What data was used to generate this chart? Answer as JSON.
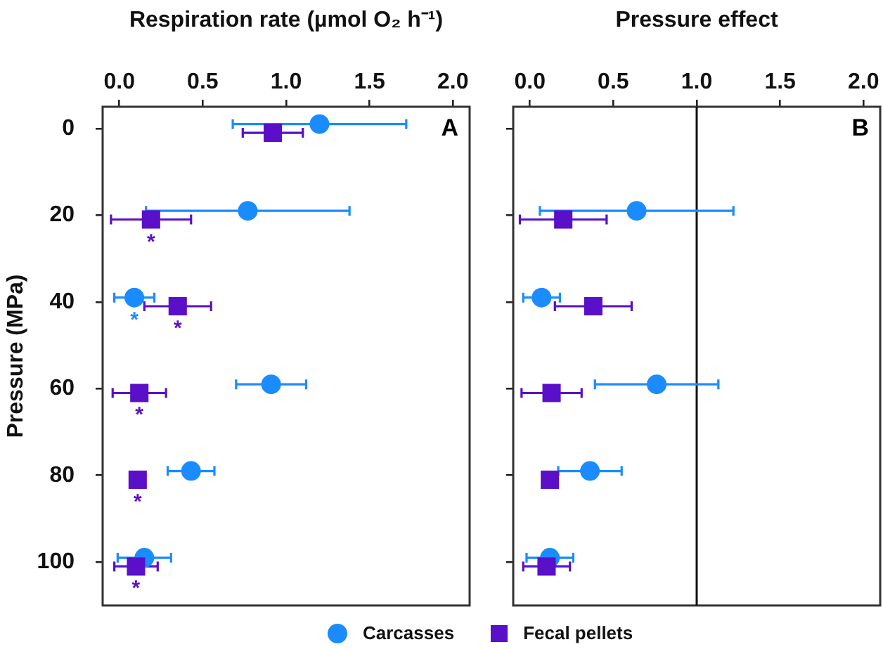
{
  "chart_data": [
    {
      "type": "scatter",
      "xlabel": "Respiration rate (µmol O₂ h⁻¹)",
      "ylabel": "Pressure (MPa)",
      "xlim": [
        -0.1,
        2.1
      ],
      "xticks": [
        {
          "value": 0,
          "label": "0.0"
        },
        {
          "value": 0.5,
          "label": "0.5"
        },
        {
          "value": 1,
          "label": "1.0"
        },
        {
          "value": 1.5,
          "label": "1.5"
        },
        {
          "value": 2,
          "label": "2.0"
        }
      ],
      "ylim": [
        110,
        -5
      ],
      "yticks": [
        0,
        20,
        40,
        60,
        80,
        100
      ],
      "legend": "bottom",
      "series": [
        {
          "name": "Carcasses",
          "color": "#1a8cff",
          "marker": "circle",
          "x": [
            1.2,
            0.77,
            0.09,
            0.91,
            0.43,
            0.15
          ],
          "values": [
            -1,
            19,
            39,
            59,
            79,
            99
          ],
          "xerrors": [
            0.52,
            0.61,
            0.12,
            0.21,
            0.14,
            0.16
          ]
        },
        {
          "name": "Fecal pellets",
          "color": "#5a0fc8",
          "marker": "square",
          "x": [
            0.92,
            0.19,
            0.35,
            0.12,
            0.11,
            0.1
          ],
          "values": [
            1,
            21,
            41,
            61,
            81,
            101
          ],
          "xerrors": [
            0.18,
            0.24,
            0.2,
            0.16,
            null,
            0.13
          ]
        }
      ],
      "annotations": [
        "A",
        {
          "text": "*",
          "x": 0.19,
          "y": 21
        },
        {
          "text": "*",
          "x": 0.09,
          "y": 39
        },
        {
          "text": "*",
          "x": 0.35,
          "y": 41
        },
        {
          "text": "*",
          "x": 0.12,
          "y": 61
        },
        {
          "text": "*",
          "x": 0.11,
          "y": 81
        },
        {
          "text": "*",
          "x": 0.1,
          "y": 101
        }
      ]
    },
    {
      "type": "scatter",
      "xlabel": "Pressure effect",
      "xlim": [
        -0.1,
        2.1
      ],
      "xticks": [
        {
          "value": 0,
          "label": "0.0"
        },
        {
          "value": 0.5,
          "label": "0.5"
        },
        {
          "value": 1,
          "label": "1.0"
        },
        {
          "value": 1.5,
          "label": "1.5"
        },
        {
          "value": 2,
          "label": "2.0"
        }
      ],
      "ylim": [
        110,
        -5
      ],
      "yticks": [
        0,
        20,
        40,
        60,
        80,
        100
      ],
      "tick_labels": "x",
      "ref_lines": [
        {
          "axis": "x",
          "value": 1
        }
      ],
      "series": [
        {
          "color": "#1a8cff",
          "marker": "circle",
          "x": [
            0.64,
            0.07,
            0.76,
            0.36,
            0.12
          ],
          "values": [
            19,
            39,
            59,
            79,
            99
          ],
          "xerrors": [
            0.58,
            0.11,
            0.37,
            0.19,
            0.14
          ]
        },
        {
          "color": "#5a0fc8",
          "marker": "square",
          "x": [
            0.2,
            0.38,
            0.13,
            0.12,
            0.1
          ],
          "values": [
            21,
            41,
            61,
            81,
            101
          ],
          "xerrors": [
            0.26,
            0.23,
            0.18,
            null,
            0.14
          ]
        }
      ],
      "annotations": [
        "B"
      ]
    }
  ]
}
